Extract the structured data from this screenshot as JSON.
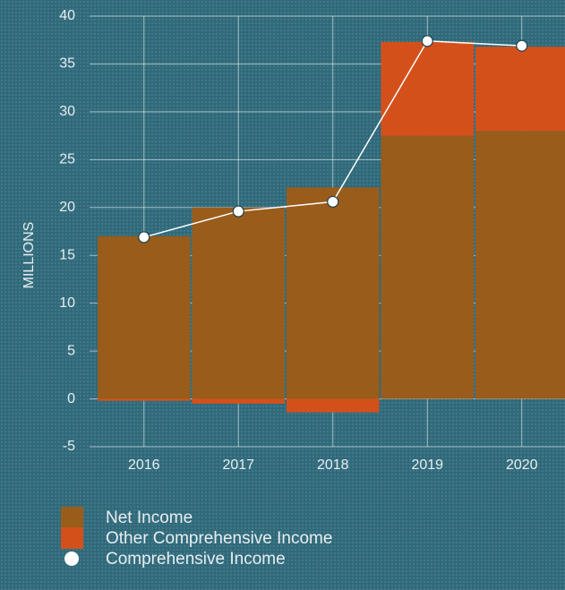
{
  "chart_data": {
    "type": "bar",
    "y_label": "MILLIONS",
    "categories": [
      "2016",
      "2017",
      "2018",
      "2019",
      "2020"
    ],
    "series": [
      {
        "name": "Net Income",
        "type": "bar",
        "color": "#995c1b",
        "values": [
          17.0,
          20.0,
          22.1,
          27.5,
          28.0
        ]
      },
      {
        "name": "Other Comprehensive Income",
        "type": "bar",
        "color": "#d4501b",
        "values": [
          -0.2,
          -0.5,
          -1.4,
          9.8,
          8.8
        ]
      },
      {
        "name": "Comprehensive Income",
        "type": "line",
        "color": "#ffffff",
        "values": [
          16.9,
          19.6,
          20.6,
          37.4,
          36.9
        ]
      }
    ],
    "ylim": [
      -5,
      40
    ],
    "yticks": [
      -5,
      0,
      5,
      10,
      15,
      20,
      25,
      30,
      35,
      40
    ],
    "grid": true
  }
}
